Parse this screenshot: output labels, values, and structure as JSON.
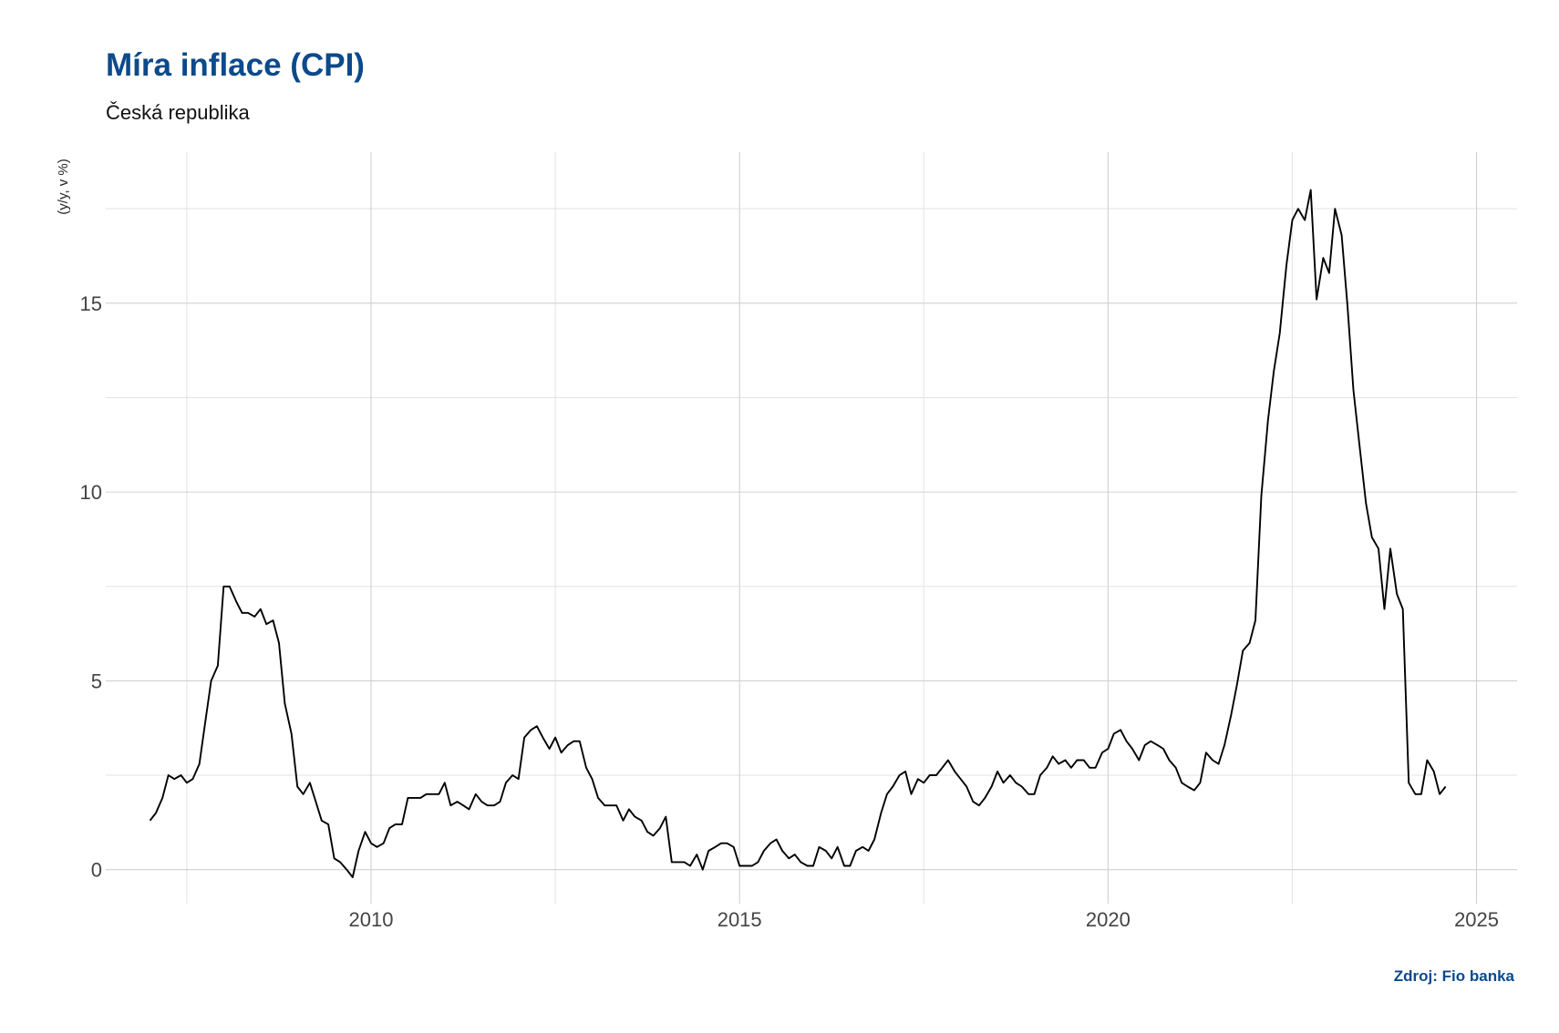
{
  "chart_data": {
    "type": "line",
    "title": "Míra inflace (CPI)",
    "subtitle": "Česká republika",
    "source": "Zdroj: Fio banka",
    "xlabel": "",
    "ylabel": "(y/y, v %)",
    "x_ticks": [
      "2010",
      "2015",
      "2020",
      "2025"
    ],
    "y_ticks": [
      "0",
      "5",
      "10",
      "15"
    ],
    "xlim": [
      2006.4,
      2025.55
    ],
    "ylim": [
      -0.9,
      19.0
    ],
    "grid": true,
    "legend": "none",
    "line_color": "#000000",
    "series": [
      {
        "values": [
          [
            2007.0,
            1.3
          ],
          [
            2007.08,
            1.5
          ],
          [
            2007.17,
            1.9
          ],
          [
            2007.25,
            2.5
          ],
          [
            2007.33,
            2.4
          ],
          [
            2007.42,
            2.5
          ],
          [
            2007.5,
            2.3
          ],
          [
            2007.58,
            2.4
          ],
          [
            2007.67,
            2.8
          ],
          [
            2007.75,
            3.9
          ],
          [
            2007.83,
            5.0
          ],
          [
            2007.92,
            5.4
          ],
          [
            2008.0,
            7.5
          ],
          [
            2008.08,
            7.5
          ],
          [
            2008.17,
            7.1
          ],
          [
            2008.25,
            6.8
          ],
          [
            2008.33,
            6.8
          ],
          [
            2008.42,
            6.7
          ],
          [
            2008.5,
            6.9
          ],
          [
            2008.58,
            6.5
          ],
          [
            2008.67,
            6.6
          ],
          [
            2008.75,
            6.0
          ],
          [
            2008.83,
            4.4
          ],
          [
            2008.92,
            3.6
          ],
          [
            2009.0,
            2.2
          ],
          [
            2009.08,
            2.0
          ],
          [
            2009.17,
            2.3
          ],
          [
            2009.25,
            1.8
          ],
          [
            2009.33,
            1.3
          ],
          [
            2009.42,
            1.2
          ],
          [
            2009.5,
            0.3
          ],
          [
            2009.58,
            0.2
          ],
          [
            2009.67,
            0.0
          ],
          [
            2009.75,
            -0.2
          ],
          [
            2009.83,
            0.5
          ],
          [
            2009.92,
            1.0
          ],
          [
            2010.0,
            0.7
          ],
          [
            2010.08,
            0.6
          ],
          [
            2010.17,
            0.7
          ],
          [
            2010.25,
            1.1
          ],
          [
            2010.33,
            1.2
          ],
          [
            2010.42,
            1.2
          ],
          [
            2010.5,
            1.9
          ],
          [
            2010.58,
            1.9
          ],
          [
            2010.67,
            1.9
          ],
          [
            2010.75,
            2.0
          ],
          [
            2010.83,
            2.0
          ],
          [
            2010.92,
            2.0
          ],
          [
            2011.0,
            2.3
          ],
          [
            2011.08,
            1.7
          ],
          [
            2011.17,
            1.8
          ],
          [
            2011.25,
            1.7
          ],
          [
            2011.33,
            1.6
          ],
          [
            2011.42,
            2.0
          ],
          [
            2011.5,
            1.8
          ],
          [
            2011.58,
            1.7
          ],
          [
            2011.67,
            1.7
          ],
          [
            2011.75,
            1.8
          ],
          [
            2011.83,
            2.3
          ],
          [
            2011.92,
            2.5
          ],
          [
            2012.0,
            2.4
          ],
          [
            2012.08,
            3.5
          ],
          [
            2012.17,
            3.7
          ],
          [
            2012.25,
            3.8
          ],
          [
            2012.33,
            3.5
          ],
          [
            2012.42,
            3.2
          ],
          [
            2012.5,
            3.5
          ],
          [
            2012.58,
            3.1
          ],
          [
            2012.67,
            3.3
          ],
          [
            2012.75,
            3.4
          ],
          [
            2012.83,
            3.4
          ],
          [
            2012.92,
            2.7
          ],
          [
            2013.0,
            2.4
          ],
          [
            2013.08,
            1.9
          ],
          [
            2013.17,
            1.7
          ],
          [
            2013.25,
            1.7
          ],
          [
            2013.33,
            1.7
          ],
          [
            2013.42,
            1.3
          ],
          [
            2013.5,
            1.6
          ],
          [
            2013.58,
            1.4
          ],
          [
            2013.67,
            1.3
          ],
          [
            2013.75,
            1.0
          ],
          [
            2013.83,
            0.9
          ],
          [
            2013.92,
            1.1
          ],
          [
            2014.0,
            1.4
          ],
          [
            2014.08,
            0.2
          ],
          [
            2014.17,
            0.2
          ],
          [
            2014.25,
            0.2
          ],
          [
            2014.33,
            0.1
          ],
          [
            2014.42,
            0.4
          ],
          [
            2014.5,
            0.0
          ],
          [
            2014.58,
            0.5
          ],
          [
            2014.67,
            0.6
          ],
          [
            2014.75,
            0.7
          ],
          [
            2014.83,
            0.7
          ],
          [
            2014.92,
            0.6
          ],
          [
            2015.0,
            0.1
          ],
          [
            2015.08,
            0.1
          ],
          [
            2015.17,
            0.1
          ],
          [
            2015.25,
            0.2
          ],
          [
            2015.33,
            0.5
          ],
          [
            2015.42,
            0.7
          ],
          [
            2015.5,
            0.8
          ],
          [
            2015.58,
            0.5
          ],
          [
            2015.67,
            0.3
          ],
          [
            2015.75,
            0.4
          ],
          [
            2015.83,
            0.2
          ],
          [
            2015.92,
            0.1
          ],
          [
            2016.0,
            0.1
          ],
          [
            2016.08,
            0.6
          ],
          [
            2016.17,
            0.5
          ],
          [
            2016.25,
            0.3
          ],
          [
            2016.33,
            0.6
          ],
          [
            2016.42,
            0.1
          ],
          [
            2016.5,
            0.1
          ],
          [
            2016.58,
            0.5
          ],
          [
            2016.67,
            0.6
          ],
          [
            2016.75,
            0.5
          ],
          [
            2016.83,
            0.8
          ],
          [
            2016.92,
            1.5
          ],
          [
            2017.0,
            2.0
          ],
          [
            2017.08,
            2.2
          ],
          [
            2017.17,
            2.5
          ],
          [
            2017.25,
            2.6
          ],
          [
            2017.33,
            2.0
          ],
          [
            2017.42,
            2.4
          ],
          [
            2017.5,
            2.3
          ],
          [
            2017.58,
            2.5
          ],
          [
            2017.67,
            2.5
          ],
          [
            2017.75,
            2.7
          ],
          [
            2017.83,
            2.9
          ],
          [
            2017.92,
            2.6
          ],
          [
            2018.0,
            2.4
          ],
          [
            2018.08,
            2.2
          ],
          [
            2018.17,
            1.8
          ],
          [
            2018.25,
            1.7
          ],
          [
            2018.33,
            1.9
          ],
          [
            2018.42,
            2.2
          ],
          [
            2018.5,
            2.6
          ],
          [
            2018.58,
            2.3
          ],
          [
            2018.67,
            2.5
          ],
          [
            2018.75,
            2.3
          ],
          [
            2018.83,
            2.2
          ],
          [
            2018.92,
            2.0
          ],
          [
            2019.0,
            2.0
          ],
          [
            2019.08,
            2.5
          ],
          [
            2019.17,
            2.7
          ],
          [
            2019.25,
            3.0
          ],
          [
            2019.33,
            2.8
          ],
          [
            2019.42,
            2.9
          ],
          [
            2019.5,
            2.7
          ],
          [
            2019.58,
            2.9
          ],
          [
            2019.67,
            2.9
          ],
          [
            2019.75,
            2.7
          ],
          [
            2019.83,
            2.7
          ],
          [
            2019.92,
            3.1
          ],
          [
            2020.0,
            3.2
          ],
          [
            2020.08,
            3.6
          ],
          [
            2020.17,
            3.7
          ],
          [
            2020.25,
            3.4
          ],
          [
            2020.33,
            3.2
          ],
          [
            2020.42,
            2.9
          ],
          [
            2020.5,
            3.3
          ],
          [
            2020.58,
            3.4
          ],
          [
            2020.67,
            3.3
          ],
          [
            2020.75,
            3.2
          ],
          [
            2020.83,
            2.9
          ],
          [
            2020.92,
            2.7
          ],
          [
            2021.0,
            2.3
          ],
          [
            2021.08,
            2.2
          ],
          [
            2021.17,
            2.1
          ],
          [
            2021.25,
            2.3
          ],
          [
            2021.33,
            3.1
          ],
          [
            2021.42,
            2.9
          ],
          [
            2021.5,
            2.8
          ],
          [
            2021.58,
            3.3
          ],
          [
            2021.67,
            4.1
          ],
          [
            2021.75,
            4.9
          ],
          [
            2021.83,
            5.8
          ],
          [
            2021.92,
            6.0
          ],
          [
            2022.0,
            6.6
          ],
          [
            2022.08,
            9.9
          ],
          [
            2022.17,
            11.9
          ],
          [
            2022.25,
            13.2
          ],
          [
            2022.33,
            14.2
          ],
          [
            2022.42,
            16.0
          ],
          [
            2022.5,
            17.2
          ],
          [
            2022.58,
            17.5
          ],
          [
            2022.67,
            17.2
          ],
          [
            2022.75,
            18.0
          ],
          [
            2022.83,
            15.1
          ],
          [
            2022.92,
            16.2
          ],
          [
            2023.0,
            15.8
          ],
          [
            2023.08,
            17.5
          ],
          [
            2023.17,
            16.8
          ],
          [
            2023.25,
            14.9
          ],
          [
            2023.33,
            12.7
          ],
          [
            2023.42,
            11.1
          ],
          [
            2023.5,
            9.7
          ],
          [
            2023.58,
            8.8
          ],
          [
            2023.67,
            8.5
          ],
          [
            2023.75,
            6.9
          ],
          [
            2023.83,
            8.5
          ],
          [
            2023.92,
            7.3
          ],
          [
            2024.0,
            6.9
          ],
          [
            2024.08,
            2.3
          ],
          [
            2024.17,
            2.0
          ],
          [
            2024.25,
            2.0
          ],
          [
            2024.33,
            2.9
          ],
          [
            2024.42,
            2.6
          ],
          [
            2024.5,
            2.0
          ],
          [
            2024.58,
            2.2
          ]
        ]
      }
    ]
  }
}
